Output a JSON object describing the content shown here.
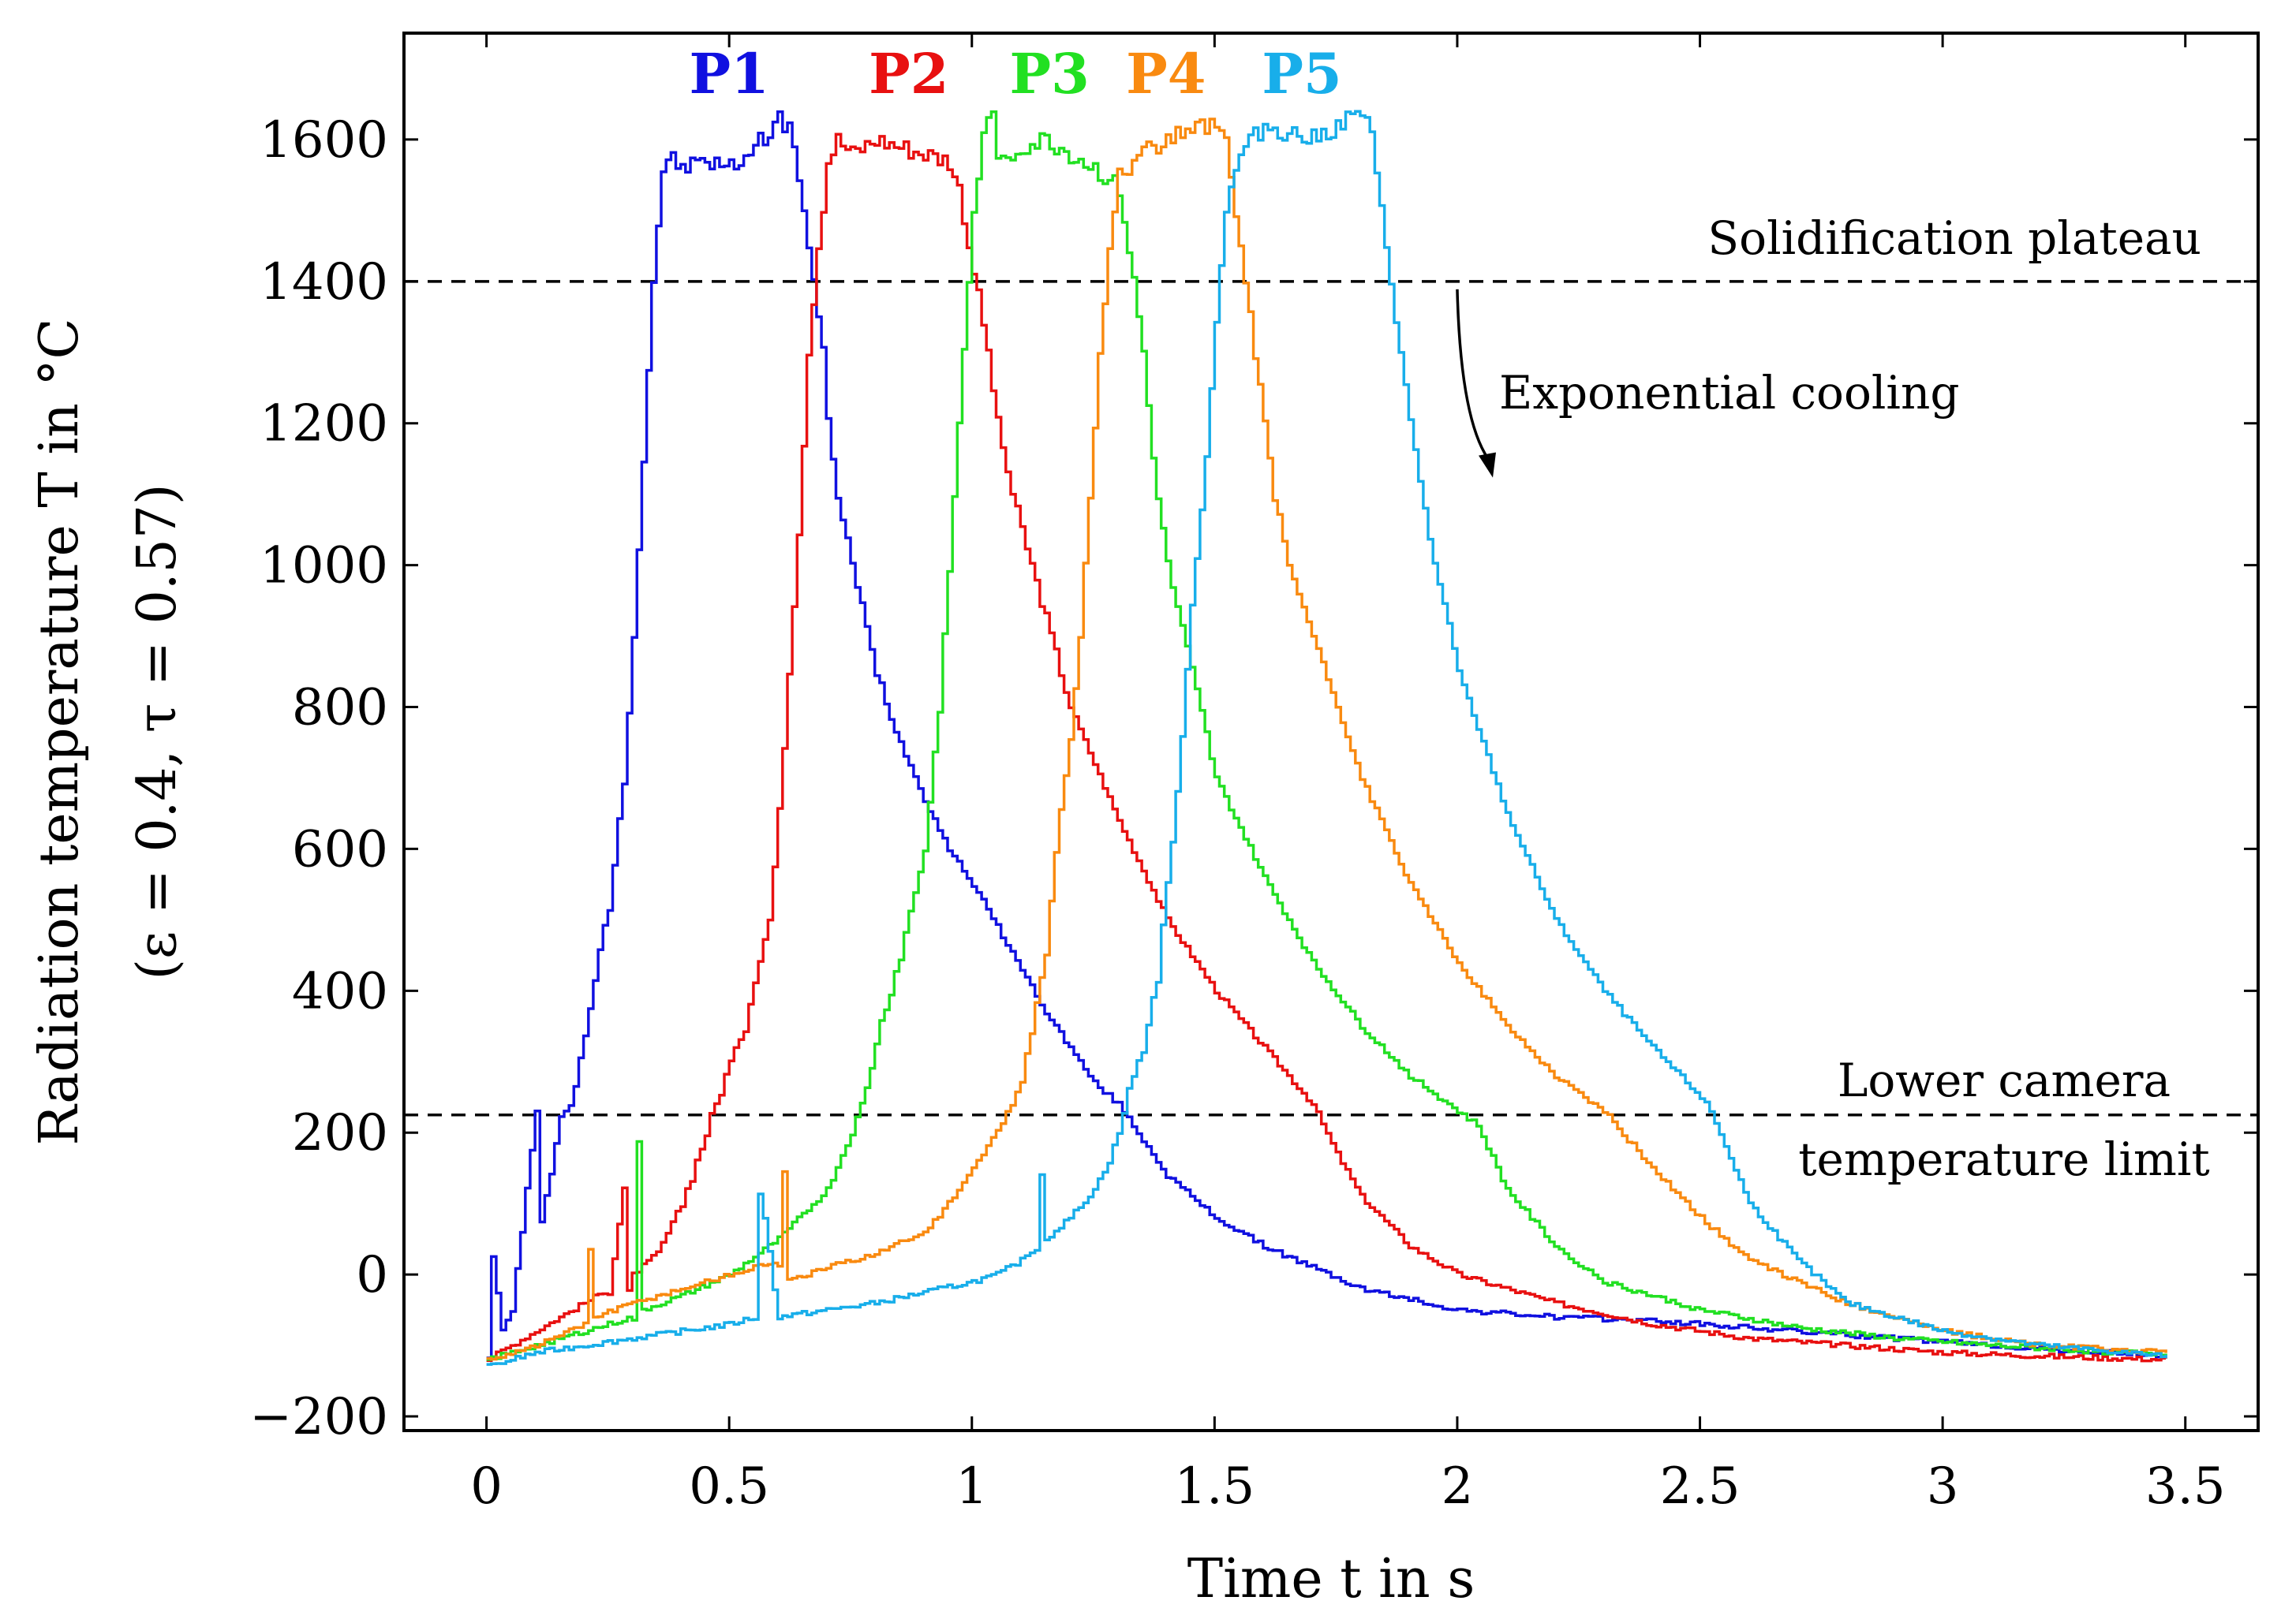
{
  "chart_data": {
    "type": "line",
    "xlabel": "Time t in s",
    "ylabel_line1": "Radiation temperature T in °C",
    "ylabel_line2": "(ε = 0.4, τ = 0.57)",
    "xlim": [
      -0.17,
      3.65
    ],
    "ylim": [
      -220,
      1750
    ],
    "xticks": [
      0,
      0.5,
      1,
      1.5,
      2,
      2.5,
      3,
      3.5
    ],
    "xtick_labels": [
      "0",
      "0.5",
      "1",
      "1.5",
      "2",
      "2.5",
      "3",
      "3.5"
    ],
    "yticks": [
      -200,
      0,
      200,
      400,
      600,
      800,
      1000,
      1200,
      1400,
      1600
    ],
    "ytick_labels": [
      "−200",
      "0",
      "200",
      "400",
      "600",
      "800",
      "1000",
      "1200",
      "1400",
      "1600"
    ],
    "reference_lines": [
      {
        "name": "solidification",
        "y": 1400,
        "label": "Solidification plateau"
      },
      {
        "name": "lower-limit",
        "y": 225,
        "label_line1": "Lower camera",
        "label_line2": "temperature limit"
      }
    ],
    "annotation": {
      "label": "Exponential cooling",
      "arrow_from": [
        2.0,
        1400
      ],
      "arrow_to": [
        2.07,
        1130
      ]
    },
    "series": [
      {
        "name": "P1",
        "color": "#1010e0",
        "label_x": 0.5,
        "x": [
          0,
          0.01,
          0.03,
          0.05,
          0.1,
          0.11,
          0.13,
          0.15,
          0.17,
          0.2,
          0.22,
          0.25,
          0.28,
          0.3,
          0.32,
          0.34,
          0.36,
          0.38,
          0.4,
          0.45,
          0.5,
          0.55,
          0.6,
          0.63,
          0.65,
          0.67,
          0.69,
          0.7,
          0.72,
          0.75,
          0.8,
          0.85,
          0.9,
          0.95,
          1.0,
          1.05,
          1.1,
          1.15,
          1.2,
          1.25,
          1.3,
          1.35,
          1.4,
          1.5,
          1.6,
          1.7,
          1.8,
          2.0,
          2.2,
          2.4,
          2.6,
          2.8,
          3.0,
          3.2,
          3.46
        ],
        "y": [
          -110,
          20,
          -80,
          -50,
          225,
          80,
          150,
          220,
          240,
          330,
          420,
          520,
          700,
          900,
          1150,
          1400,
          1560,
          1570,
          1560,
          1570,
          1560,
          1590,
          1630,
          1600,
          1500,
          1400,
          1300,
          1200,
          1100,
          1000,
          850,
          750,
          670,
          600,
          550,
          490,
          430,
          370,
          320,
          270,
          240,
          190,
          140,
          80,
          40,
          10,
          -20,
          -50,
          -60,
          -65,
          -75,
          -85,
          -95,
          -105,
          -115
        ]
      },
      {
        "name": "P2",
        "color": "#e81010",
        "label_x": 0.87,
        "x": [
          0,
          0.05,
          0.1,
          0.15,
          0.2,
          0.25,
          0.28,
          0.29,
          0.3,
          0.35,
          0.4,
          0.45,
          0.5,
          0.53,
          0.55,
          0.58,
          0.6,
          0.62,
          0.64,
          0.66,
          0.68,
          0.7,
          0.72,
          0.75,
          0.8,
          0.85,
          0.9,
          0.95,
          0.97,
          0.99,
          1.01,
          1.03,
          1.05,
          1.08,
          1.12,
          1.16,
          1.2,
          1.25,
          1.3,
          1.35,
          1.4,
          1.5,
          1.6,
          1.7,
          1.75,
          1.8,
          1.9,
          2.0,
          2.2,
          2.4,
          2.6,
          2.8,
          3.0,
          3.2,
          3.46
        ],
        "y": [
          -120,
          -100,
          -80,
          -60,
          -40,
          -20,
          120,
          -30,
          0,
          30,
          100,
          200,
          300,
          350,
          420,
          500,
          650,
          850,
          1050,
          1300,
          1450,
          1570,
          1600,
          1580,
          1600,
          1590,
          1580,
          1570,
          1530,
          1450,
          1380,
          1300,
          1200,
          1100,
          1000,
          900,
          800,
          720,
          640,
          570,
          500,
          400,
          320,
          240,
          170,
          110,
          40,
          0,
          -40,
          -70,
          -90,
          -100,
          -110,
          -115,
          -120
        ]
      },
      {
        "name": "P3",
        "color": "#22e022",
        "label_x": 1.16,
        "x": [
          0,
          0.1,
          0.2,
          0.3,
          0.31,
          0.32,
          0.4,
          0.5,
          0.6,
          0.7,
          0.75,
          0.78,
          0.8,
          0.85,
          0.9,
          0.93,
          0.95,
          0.97,
          0.99,
          1.0,
          1.02,
          1.04,
          1.05,
          1.1,
          1.15,
          1.2,
          1.25,
          1.3,
          1.33,
          1.35,
          1.37,
          1.4,
          1.45,
          1.5,
          1.6,
          1.7,
          1.8,
          1.9,
          2.0,
          2.04,
          2.1,
          2.2,
          2.3,
          2.5,
          2.7,
          2.9,
          3.1,
          3.3,
          3.46
        ],
        "y": [
          -120,
          -100,
          -80,
          -60,
          180,
          -50,
          -30,
          0,
          50,
          120,
          200,
          260,
          330,
          450,
          600,
          800,
          1000,
          1200,
          1400,
          1500,
          1600,
          1650,
          1560,
          1590,
          1600,
          1580,
          1560,
          1530,
          1400,
          1300,
          1150,
          1000,
          850,
          700,
          560,
          440,
          350,
          280,
          230,
          210,
          120,
          40,
          -10,
          -50,
          -75,
          -90,
          -100,
          -108,
          -112
        ]
      },
      {
        "name": "P4",
        "color": "#f98a10",
        "label_x": 1.4,
        "x": [
          0,
          0.1,
          0.2,
          0.21,
          0.22,
          0.3,
          0.4,
          0.5,
          0.6,
          0.61,
          0.62,
          0.7,
          0.8,
          0.9,
          0.95,
          1.0,
          1.05,
          1.1,
          1.13,
          1.15,
          1.17,
          1.2,
          1.22,
          1.24,
          1.26,
          1.28,
          1.3,
          1.35,
          1.4,
          1.45,
          1.5,
          1.52,
          1.54,
          1.56,
          1.58,
          1.6,
          1.62,
          1.65,
          1.7,
          1.75,
          1.8,
          1.9,
          2.0,
          2.1,
          2.2,
          2.3,
          2.4,
          2.5,
          2.6,
          2.8,
          3.0,
          3.2,
          3.46
        ],
        "y": [
          -120,
          -100,
          -70,
          40,
          -60,
          -40,
          -20,
          0,
          20,
          140,
          -10,
          10,
          30,
          60,
          100,
          150,
          200,
          270,
          380,
          450,
          600,
          750,
          900,
          1100,
          1300,
          1450,
          1550,
          1580,
          1600,
          1610,
          1620,
          1600,
          1500,
          1400,
          1300,
          1200,
          1100,
          1000,
          900,
          800,
          700,
          550,
          440,
          350,
          280,
          230,
          150,
          80,
          20,
          -40,
          -80,
          -100,
          -110
        ]
      },
      {
        "name": "P5",
        "color": "#18aeea",
        "label_x": 1.68,
        "x": [
          0,
          0.1,
          0.2,
          0.3,
          0.4,
          0.5,
          0.55,
          0.56,
          0.6,
          0.7,
          0.8,
          0.9,
          1.0,
          1.05,
          1.1,
          1.13,
          1.14,
          1.15,
          1.2,
          1.25,
          1.28,
          1.3,
          1.32,
          1.35,
          1.38,
          1.4,
          1.43,
          1.45,
          1.48,
          1.5,
          1.52,
          1.55,
          1.6,
          1.7,
          1.75,
          1.8,
          1.82,
          1.84,
          1.86,
          1.88,
          1.9,
          1.95,
          2.0,
          2.1,
          2.2,
          2.3,
          2.4,
          2.5,
          2.52,
          2.6,
          2.7,
          2.8,
          3.0,
          3.2,
          3.46
        ],
        "y": [
          -130,
          -110,
          -100,
          -90,
          -80,
          -70,
          -60,
          120,
          -60,
          -50,
          -40,
          -25,
          -10,
          0,
          20,
          40,
          140,
          50,
          80,
          120,
          160,
          200,
          260,
          320,
          420,
          550,
          750,
          950,
          1150,
          1350,
          1500,
          1580,
          1620,
          1600,
          1620,
          1640,
          1600,
          1500,
          1400,
          1300,
          1200,
          1000,
          850,
          650,
          500,
          400,
          320,
          250,
          230,
          100,
          20,
          -40,
          -80,
          -100,
          -115
        ]
      }
    ]
  }
}
